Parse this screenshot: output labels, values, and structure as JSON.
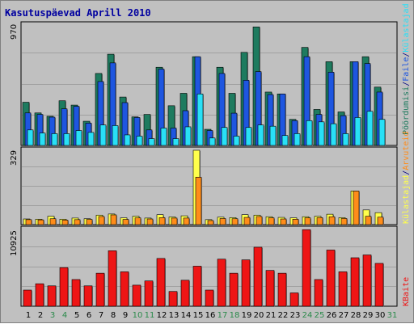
{
  "title": "Kasutuspäevad Aprill 2010",
  "colors": {
    "background": "#c0c0c0",
    "frame": "#7f7f7f",
    "title": "#0000a0",
    "visits": "#1e7b5f",
    "pages": "#1e56e0",
    "hits": "#29e0f6",
    "bandwidth": "#ee1515",
    "visitors": "#ff8c1a",
    "hosts": "#ffff4c",
    "weekday": "#000000",
    "weekend": "#2a8a4a"
  },
  "legend": {
    "top": [
      {
        "label": "Pöördumisi",
        "color": "#1e7b5f"
      },
      {
        "label": "/",
        "color": "#000080"
      },
      {
        "label": "Faile",
        "color": "#1e56e0"
      },
      {
        "label": "/",
        "color": "#000080"
      },
      {
        "label": "Külastajad",
        "color": "#29e0f6"
      }
    ],
    "middle": [
      {
        "label": "Külastajad",
        "color": "#ffff4c"
      },
      {
        "label": "/",
        "color": "#000080"
      },
      {
        "label": "Arvuteid",
        "color": "#ff8c1a"
      }
    ],
    "bottom": [
      {
        "label": "KBaite",
        "color": "#ee1515"
      }
    ]
  },
  "chart_data": {
    "type": "bar",
    "title": "Kasutuspäevad Aprill 2010",
    "categories": [
      "1",
      "2",
      "3",
      "4",
      "5",
      "6",
      "7",
      "8",
      "9",
      "10",
      "11",
      "12",
      "13",
      "14",
      "15",
      "16",
      "17",
      "18",
      "19",
      "20",
      "21",
      "22",
      "23",
      "24",
      "25",
      "26",
      "27",
      "28",
      "29",
      "30",
      "31"
    ],
    "weekend_days": [
      "3",
      "4",
      "10",
      "11",
      "17",
      "18",
      "24",
      "25",
      "31"
    ],
    "panels": [
      {
        "name": "top",
        "ymax_label": "970",
        "ylim": [
          0,
          970
        ],
        "series": [
          {
            "name": "Pöördumisi",
            "values": [
              348,
              262,
              235,
              360,
              325,
              195,
              580,
              735,
              390,
              230,
              250,
              630,
              320,
              420,
              715,
              130,
              630,
              420,
              750,
              955,
              430,
              415,
              210,
              790,
              290,
              675,
              270,
              675,
              715,
              470,
              0
            ]
          },
          {
            "name": "Faile",
            "values": [
              262,
              250,
              228,
              295,
              315,
              180,
              515,
              665,
              345,
              225,
              125,
              615,
              140,
              280,
              715,
              120,
              580,
              260,
              525,
              595,
              410,
              415,
              200,
              715,
              250,
              590,
              240,
              675,
              660,
              430,
              0
            ]
          },
          {
            "name": "Külastajad",
            "values": [
              125,
              100,
              95,
              95,
              120,
              105,
              165,
              160,
              85,
              75,
              55,
              140,
              55,
              150,
              415,
              60,
              145,
              75,
              145,
              165,
              155,
              80,
              95,
              200,
              190,
              175,
              95,
              225,
              275,
              210,
              0
            ]
          }
        ]
      },
      {
        "name": "middle",
        "ymax_label": "329",
        "ylim": [
          0,
          329
        ],
        "series": [
          {
            "name": "Külastajad",
            "values": [
              25,
              24,
              37,
              24,
              29,
              26,
              42,
              47,
              30,
              37,
              29,
              44,
              34,
              39,
              329,
              22,
              33,
              31,
              44,
              42,
              35,
              32,
              30,
              35,
              37,
              46,
              31,
              149,
              65,
              53,
              0
            ]
          },
          {
            "name": "Arvuteid",
            "values": [
              22,
              21,
              26,
              20,
              22,
              23,
              36,
              43,
              23,
              30,
              25,
              31,
              29,
              29,
              210,
              18,
              27,
              26,
              32,
              36,
              30,
              25,
              24,
              30,
              31,
              35,
              27,
              149,
              37,
              33,
              0
            ]
          }
        ]
      },
      {
        "name": "bottom",
        "ymax_label": "10925",
        "ylim": [
          0,
          10925
        ],
        "series": [
          {
            "name": "KBaite",
            "values": [
              2300,
              3200,
              2900,
              5500,
              3800,
              2900,
              4700,
              7900,
              4900,
              3000,
              3600,
              6800,
              2100,
              3700,
              5700,
              2300,
              6700,
              4700,
              6600,
              8400,
              5100,
              4700,
              1900,
              10900,
              3800,
              8000,
              4900,
              6900,
              7300,
              6100,
              0
            ]
          }
        ]
      }
    ]
  }
}
